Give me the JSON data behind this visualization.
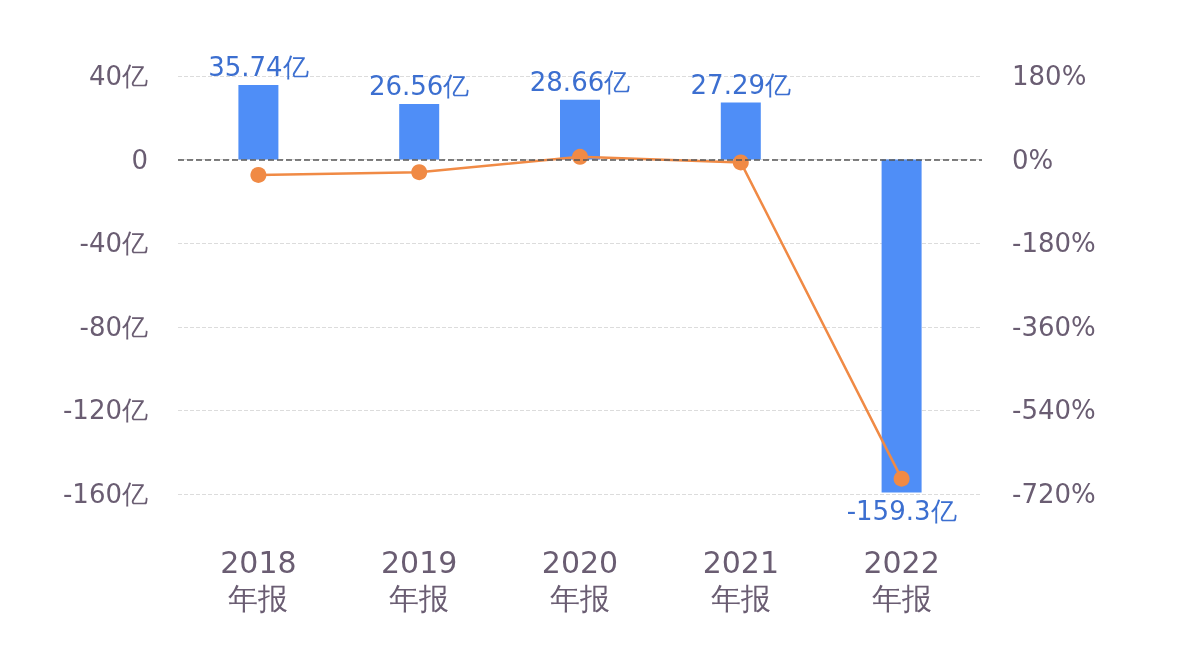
{
  "chart_data": {
    "type": "bar",
    "categories": [
      "2018\n年报",
      "2019\n年报",
      "2020\n年报",
      "2021\n年报",
      "2022\n年报"
    ],
    "series": [
      {
        "color": "#4f8ef7",
        "values": [
          35.74,
          26.56,
          28.66,
          27.29,
          -159.3
        ],
        "value_labels": [
          "35.74亿",
          "26.56亿",
          "28.66亿",
          "27.29亿",
          "-159.3亿"
        ]
      },
      {
        "type": "line",
        "axis": "y2",
        "color": "#f08a45",
        "values": [
          -33,
          -27,
          6,
          -6,
          -687
        ],
        "marker": "circle"
      }
    ],
    "ylim": [
      -160,
      40
    ],
    "yticks": [
      {
        "value": 40,
        "label": "40亿"
      },
      0,
      {
        "value": -40,
        "label": "-40亿"
      },
      {
        "value": -80,
        "label": "-80亿"
      },
      {
        "value": -120,
        "label": "-120亿"
      },
      {
        "value": -160,
        "label": "-160亿"
      }
    ],
    "y2lim": [
      -720,
      180
    ],
    "y2ticks": [
      {
        "value": 180,
        "label": "180%"
      },
      {
        "value": 0,
        "label": "0%"
      },
      {
        "value": -180,
        "label": "-180%"
      },
      {
        "value": -360,
        "label": "-360%"
      },
      {
        "value": -540,
        "label": "-540%"
      },
      {
        "value": -720,
        "label": "-720%"
      }
    ],
    "grid": "y",
    "ref_lines": [
      {
        "axis": "y",
        "value": 0,
        "color": "#555555",
        "line_style": "dashed"
      }
    ]
  }
}
